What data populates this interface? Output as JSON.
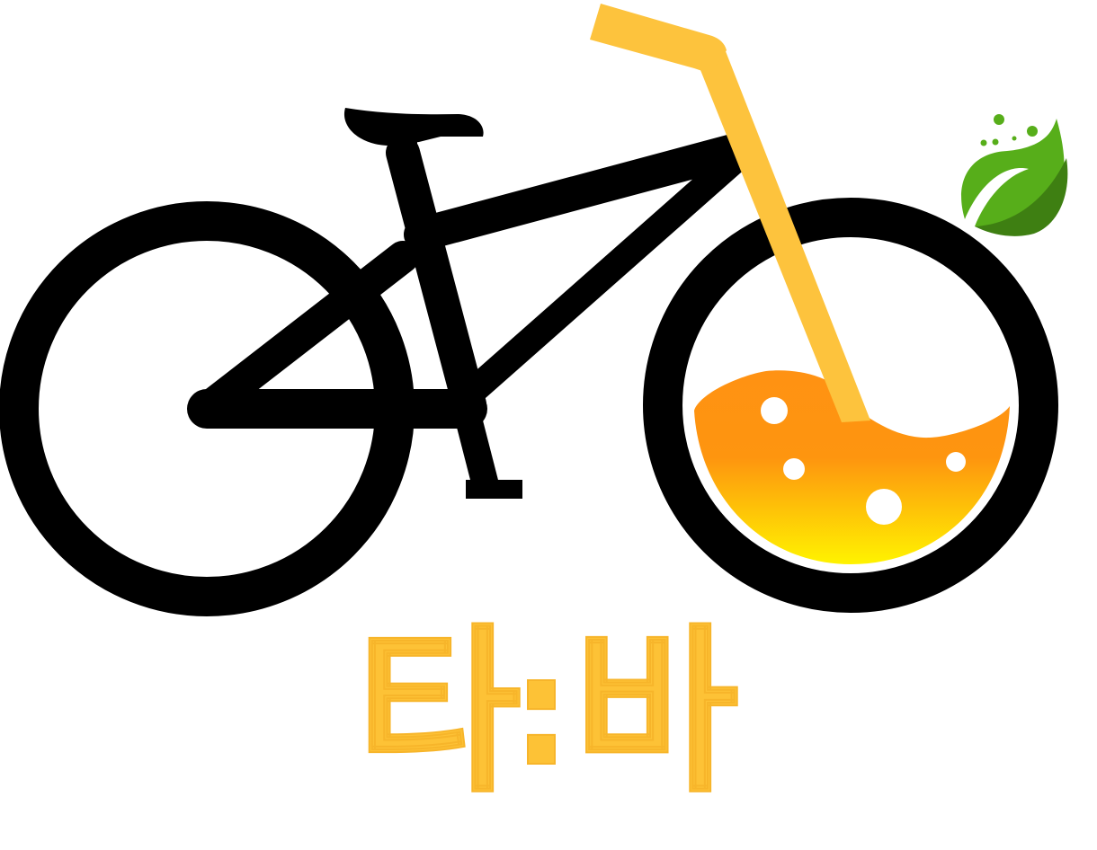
{
  "logo": {
    "wordmark_left": "타",
    "wordmark_right": "바",
    "wordmark_separator": ":",
    "wordmark_color": "#FDC236",
    "wordmark_stroke_color": "#F7B52A",
    "bike_color": "#000000",
    "straw_color": "#FDC33D",
    "juice_gradient_top": "#FF9213",
    "juice_gradient_bottom": "#FFF300",
    "leaf_light_color": "#57AE1A",
    "leaf_dark_color": "#3E7F12",
    "dot_color": "#57AE1A",
    "icons": [
      "bicycle-icon",
      "juice-cup-icon",
      "straw-icon",
      "leaf-icon",
      "bubble-icon"
    ]
  }
}
